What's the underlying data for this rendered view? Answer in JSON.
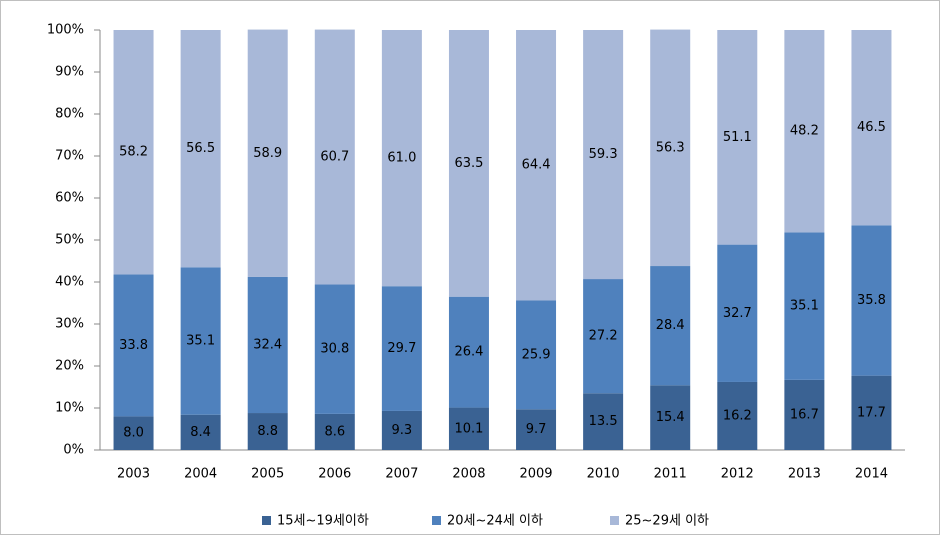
{
  "chart_data": {
    "type": "stacked_bar",
    "categories": [
      "2003",
      "2004",
      "2005",
      "2006",
      "2007",
      "2008",
      "2009",
      "2010",
      "2011",
      "2012",
      "2013",
      "2014"
    ],
    "series": [
      {
        "name": "15세~19세이하",
        "color": "#3a6293",
        "values": [
          8.0,
          8.4,
          8.8,
          8.6,
          9.3,
          10.1,
          9.7,
          13.5,
          15.4,
          16.2,
          16.7,
          17.7
        ],
        "value_labels": [
          "8.0",
          "8.4",
          "8.8",
          "8.6",
          "9.3",
          "10.1",
          "9.7",
          "13.5",
          "15.4",
          "16.2",
          "16.7",
          "17.7"
        ]
      },
      {
        "name": "20세~24세 이하",
        "color": "#4f81bd",
        "values": [
          33.8,
          35.1,
          32.4,
          30.8,
          29.7,
          26.4,
          25.9,
          27.2,
          28.4,
          32.7,
          35.1,
          35.8
        ],
        "value_labels": [
          "33.8",
          "35.1",
          "32.4",
          "30.8",
          "29.7",
          "26.4",
          "25.9",
          "27.2",
          "28.4",
          "32.7",
          "35.1",
          "35.8"
        ]
      },
      {
        "name": "25~29세 이하",
        "color": "#a8b8d8",
        "values": [
          58.2,
          56.5,
          58.9,
          60.7,
          61.0,
          63.5,
          64.4,
          59.3,
          56.3,
          51.1,
          48.2,
          46.5
        ],
        "value_labels": [
          "58.2",
          "56.5",
          "58.9",
          "60.7",
          "61.0",
          "63.5",
          "64.4",
          "59.3",
          "56.3",
          "51.1",
          "48.2",
          "46.5"
        ]
      }
    ],
    "ylim": [
      0,
      100
    ],
    "yticks": [
      {
        "value": 0,
        "label": "0%"
      },
      {
        "value": 10,
        "label": "10%"
      },
      {
        "value": 20,
        "label": "20%"
      },
      {
        "value": 30,
        "label": "30%"
      },
      {
        "value": 40,
        "label": "40%"
      },
      {
        "value": 50,
        "label": "50%"
      },
      {
        "value": 60,
        "label": "60%"
      },
      {
        "value": 70,
        "label": "70%"
      },
      {
        "value": 80,
        "label": "80%"
      },
      {
        "value": 90,
        "label": "90%"
      },
      {
        "value": 100,
        "label": "100%"
      }
    ]
  }
}
